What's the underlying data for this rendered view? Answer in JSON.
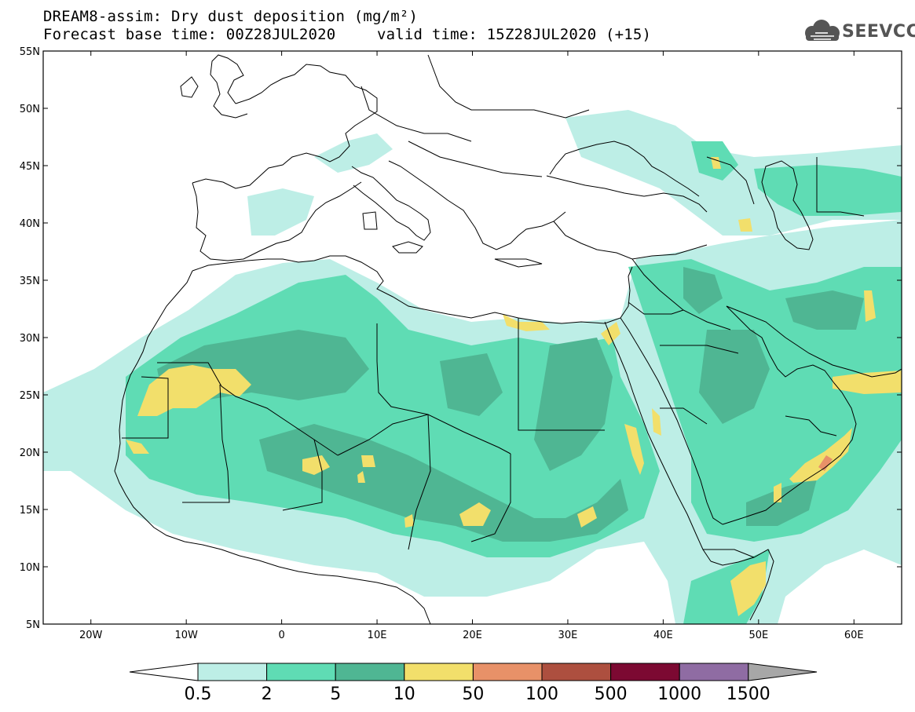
{
  "header": {
    "line1": "DREAM8-assim: Dry dust deposition (mg/m²)",
    "line2_left": "Forecast base time: 00Z28JUL2020",
    "line2_right": "valid time: 15Z28JUL2020 (+15)"
  },
  "logo": {
    "text": "SEEVCCC",
    "icon": "cloud-logo-icon"
  },
  "map": {
    "lon_range": [
      -25,
      65
    ],
    "lat_range": [
      5,
      55
    ],
    "lon_ticks": [
      {
        "value": -20,
        "label": "20W"
      },
      {
        "value": -10,
        "label": "10W"
      },
      {
        "value": 0,
        "label": "0"
      },
      {
        "value": 10,
        "label": "10E"
      },
      {
        "value": 20,
        "label": "20E"
      },
      {
        "value": 30,
        "label": "30E"
      },
      {
        "value": 40,
        "label": "40E"
      },
      {
        "value": 50,
        "label": "50E"
      },
      {
        "value": 60,
        "label": "60E"
      }
    ],
    "lat_ticks": [
      {
        "value": 55,
        "label": "55N"
      },
      {
        "value": 50,
        "label": "50N"
      },
      {
        "value": 45,
        "label": "45N"
      },
      {
        "value": 40,
        "label": "40N"
      },
      {
        "value": 35,
        "label": "35N"
      },
      {
        "value": 30,
        "label": "30N"
      },
      {
        "value": 25,
        "label": "25N"
      },
      {
        "value": 20,
        "label": "20N"
      },
      {
        "value": 15,
        "label": "15N"
      },
      {
        "value": 10,
        "label": "10N"
      },
      {
        "value": 5,
        "label": "5N"
      }
    ]
  },
  "colorbar": {
    "levels": [
      "0.5",
      "2",
      "5",
      "10",
      "50",
      "100",
      "500",
      "1000",
      "1500"
    ],
    "colors": [
      "#bdeee6",
      "#5fdcb4",
      "#4fb693",
      "#f2df6b",
      "#e89168",
      "#ad4f3f",
      "#7c0932",
      "#8f6ca3"
    ],
    "under_color": "#ffffff",
    "over_color": "#a7a7a7"
  },
  "colors": {
    "c1": "#bdeee6",
    "c2": "#5fdcb4",
    "c3": "#4fb693",
    "c4": "#f2df6b",
    "c5": "#e89168"
  }
}
